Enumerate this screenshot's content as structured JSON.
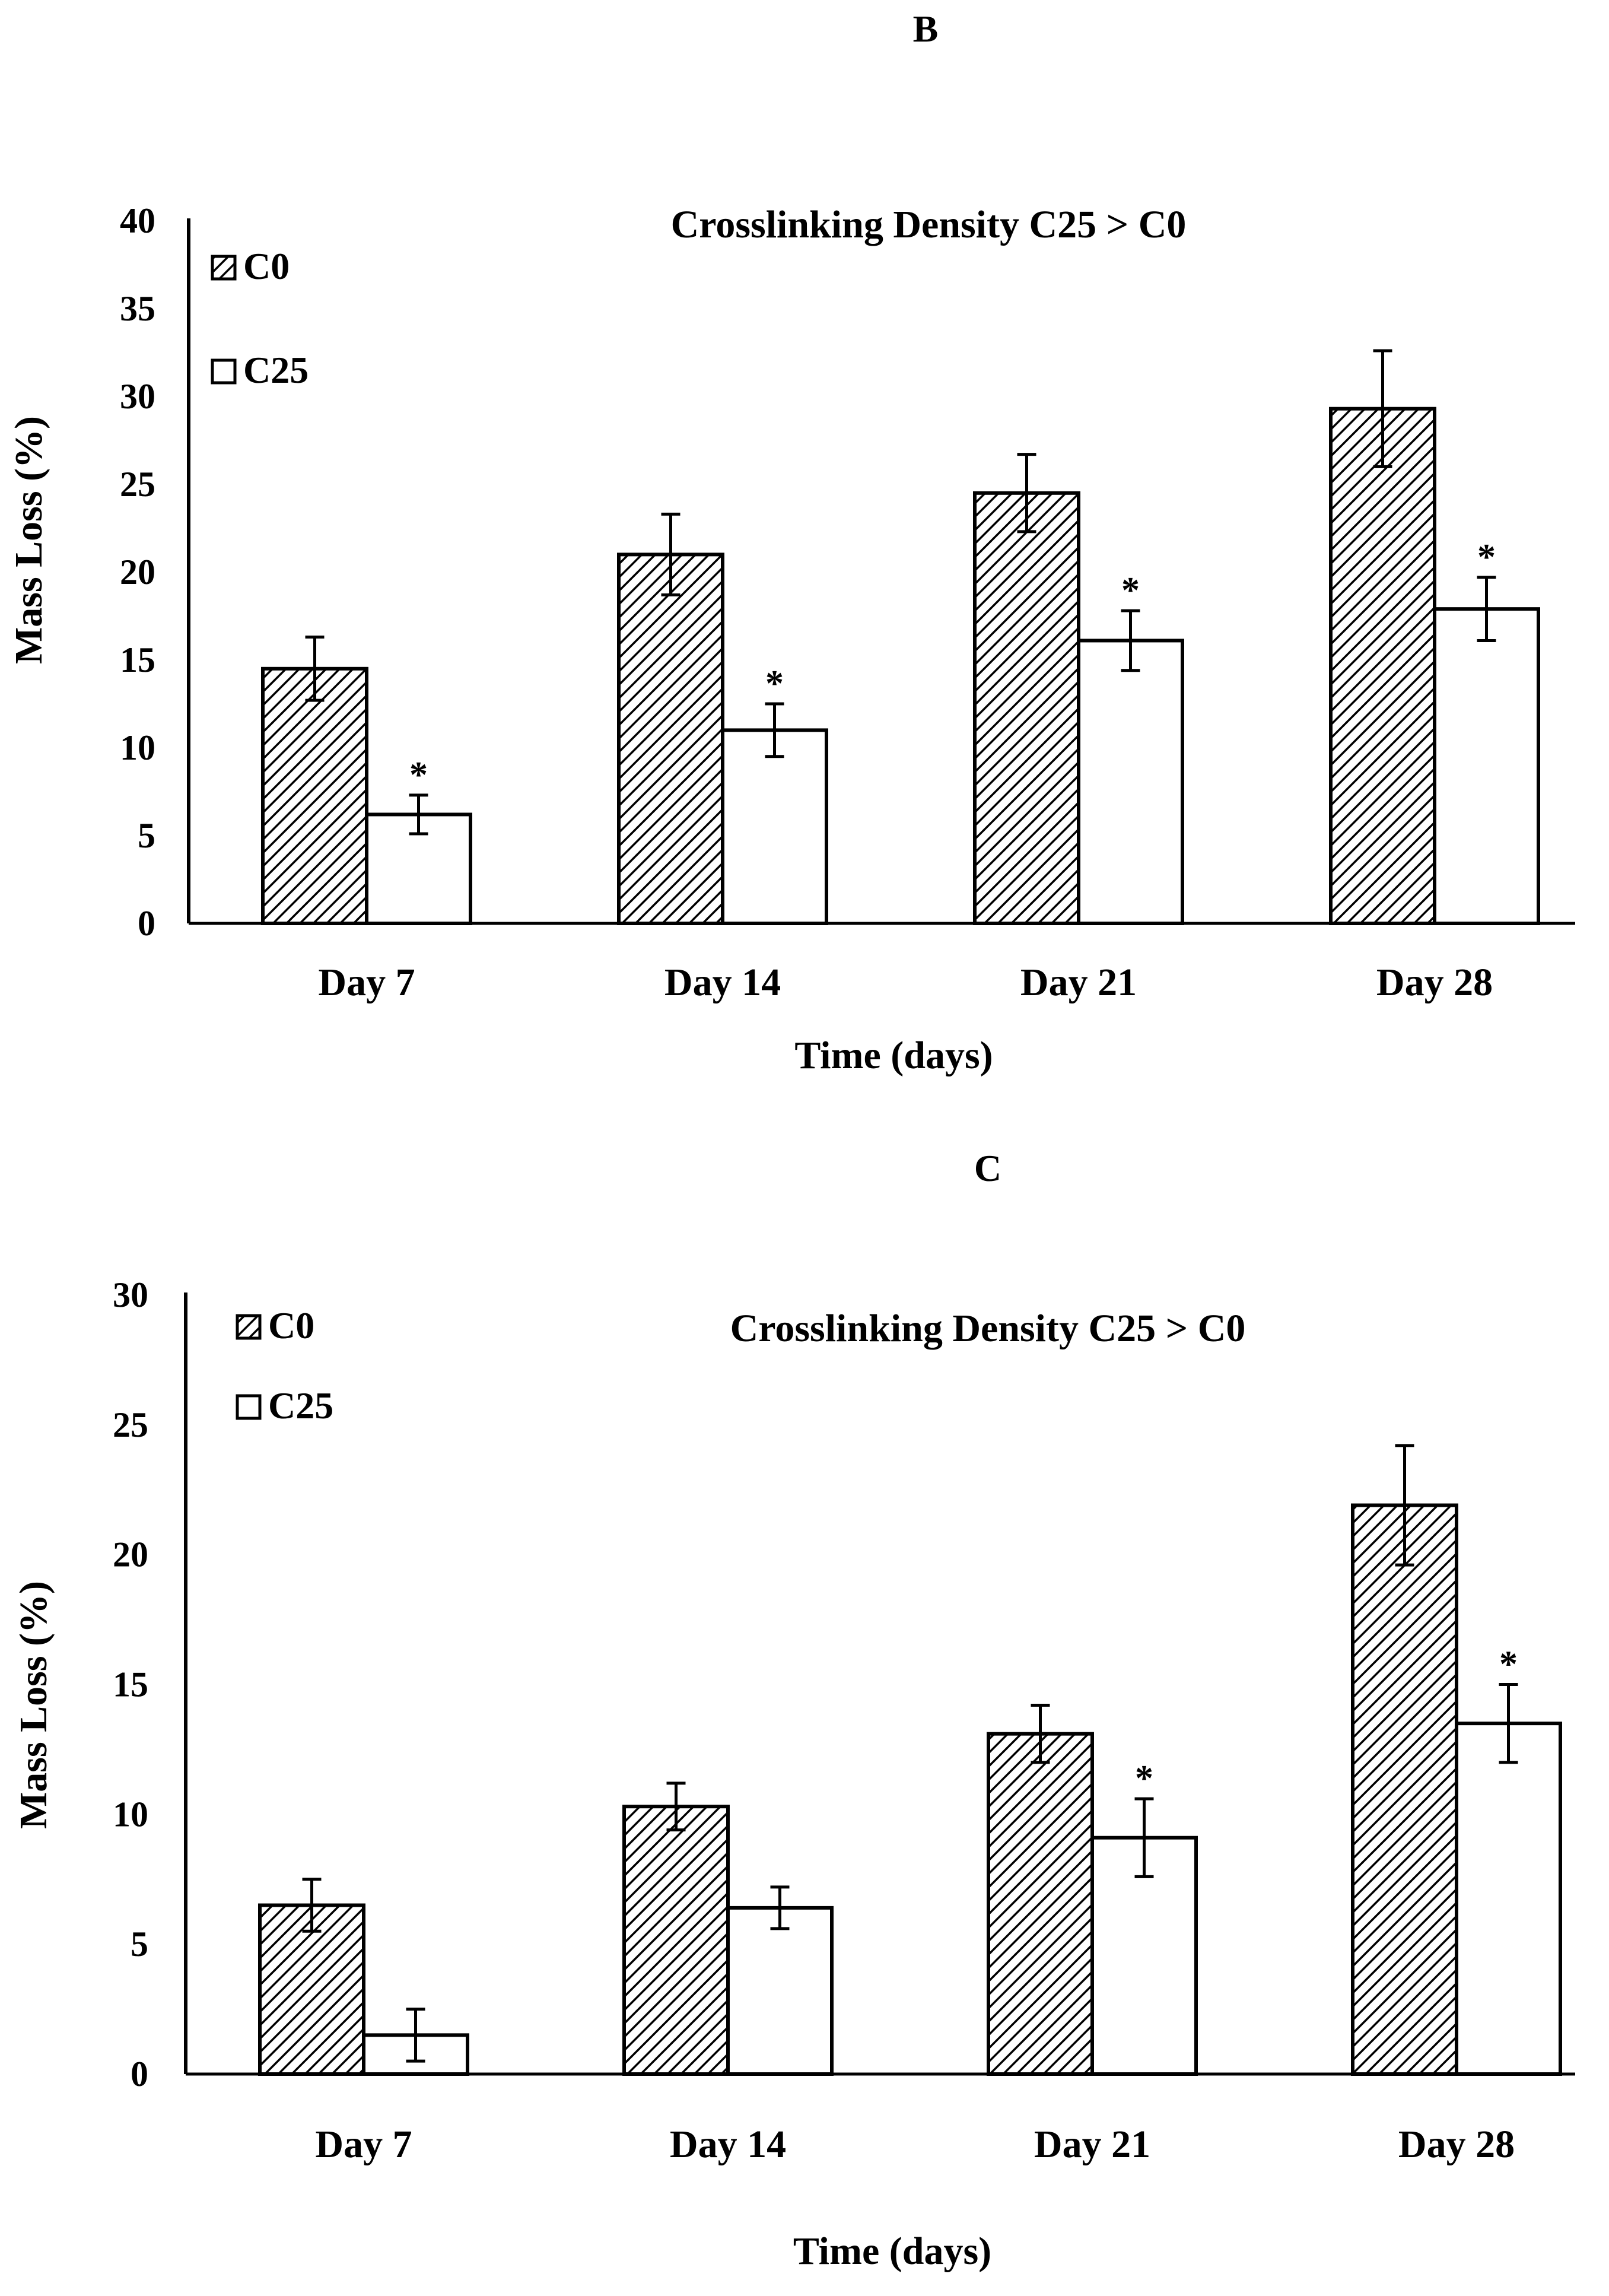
{
  "chart_data": [
    {
      "panel": "B",
      "type": "bar",
      "title": "Crosslinking Density C25 > C0",
      "xlabel": "Time (days)",
      "ylabel": "Mass Loss (%)",
      "categories": [
        "Day 7",
        "Day 14",
        "Day 21",
        "Day 28"
      ],
      "ylim": [
        0,
        40
      ],
      "yticks": [
        0,
        5,
        10,
        15,
        20,
        25,
        30,
        35,
        40
      ],
      "legend_position": "top-left",
      "series": [
        {
          "name": "C0",
          "pattern": "hatched",
          "values": [
            14.5,
            21,
            24.5,
            29.3
          ],
          "errors": [
            1.8,
            2.3,
            2.2,
            3.3
          ]
        },
        {
          "name": "C25",
          "pattern": "white",
          "values": [
            6.2,
            11,
            16.1,
            17.9
          ],
          "errors": [
            1.1,
            1.5,
            1.7,
            1.8
          ]
        }
      ],
      "significance": {
        "series": "C25",
        "marks": [
          "*",
          "*",
          "*",
          "*"
        ]
      }
    },
    {
      "panel": "C",
      "type": "bar",
      "title": "Crosslinking Density C25 > C0",
      "xlabel": "Time (days)",
      "ylabel": "Mass Loss (%)",
      "categories": [
        "Day 7",
        "Day 14",
        "Day 21",
        "Day 28"
      ],
      "ylim": [
        0,
        30
      ],
      "yticks": [
        0,
        5,
        10,
        15,
        20,
        25,
        30
      ],
      "legend_position": "top-left",
      "series": [
        {
          "name": "C0",
          "pattern": "hatched",
          "values": [
            6.5,
            10.3,
            13.1,
            21.9
          ],
          "errors": [
            1.0,
            0.9,
            1.1,
            2.3
          ]
        },
        {
          "name": "C25",
          "pattern": "white",
          "values": [
            1.5,
            6.4,
            9.1,
            13.5
          ],
          "errors": [
            1.0,
            0.8,
            1.5,
            1.5
          ]
        }
      ],
      "significance": {
        "series": "C25",
        "marks": [
          "",
          "",
          "*",
          "*"
        ]
      }
    }
  ]
}
